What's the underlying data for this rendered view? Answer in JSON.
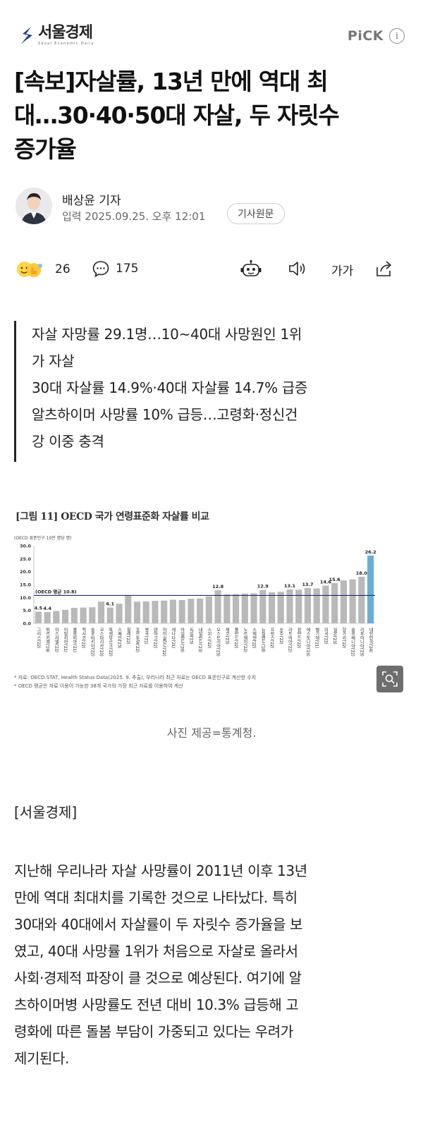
{
  "header": {
    "logo_text": "서울경제",
    "logo_subtitle": "Seoul Economic Daily",
    "pick_label": "PiCK",
    "info_icon": "info-icon",
    "brand_color": "#1f3f8f"
  },
  "article": {
    "headline_lines": [
      "[속보]자살률, 13년 만에 역대 최",
      "대…30·40·50대 자살, 두 자릿수",
      "증가율"
    ],
    "reporter": "배상윤 기자",
    "date": "입력 2025.09.25. 오후 12:01",
    "original_button": "기사원문"
  },
  "actions": {
    "reaction_count": "26",
    "comment_count": "175",
    "font_size_label": "가가",
    "icons": [
      "reaction-icon",
      "comment-icon",
      "robot-summary-icon",
      "speaker-icon",
      "font-size-icon",
      "share-icon"
    ]
  },
  "summary": {
    "lines": [
      "자살 자망률 29.1명…10~40대 사망원인 1위",
      "가 자살",
      "30대 자살률 14.9%·40대 자살률 14.7% 급증",
      "알츠하이머 사망률 10% 급등…고령화·정신건",
      "강 이중 충격"
    ]
  },
  "figure": {
    "title": "[그림 11] OECD 국가 연령표준화 자살률 비교",
    "unit": "(OECD 표준인구 10만 명당 명)",
    "notes": [
      "* 자료: OECD.STAT, Health Status Data(2025. 9. 추출), 우리나라 최근 자료는 OECD 표준인구로 계산한 수치",
      "* OECD 평균은 자료 이용이 가능한 38개 국가의 가장 최근 자료를 이용하여 계산"
    ],
    "caption": "사진 제공=통계청.",
    "zoom_icon": "zoom-icon"
  },
  "chart_data": {
    "type": "bar",
    "title": "[그림 11] OECD 국가 연령표준화 자살률 비교",
    "ylabel": "(OECD 표준인구 10만 명당 명)",
    "ylim": [
      0,
      30
    ],
    "yticks": [
      "0.0",
      "5.0",
      "10.0",
      "15.0",
      "20.0",
      "25.0",
      "30.0"
    ],
    "reference_line": {
      "label": "(OECD 평균 10.8)",
      "value": 10.8
    },
    "categories": [
      "그리스('22)",
      "튀르키예('19)",
      "이스라엘('22)",
      "이탈리아('21)",
      "콜롬비아('21)",
      "멕시코('22)",
      "슬로바키아('22)",
      "코스타리카('23)",
      "룩셈부르크('22)",
      "스페인('23)",
      "칠레('22)",
      "포르투갈('22)",
      "영국('21)",
      "덴마크('22)",
      "아이슬란드('22)",
      "캐나다('21)",
      "아일랜드('20)",
      "독일('23)",
      "네덜란드('23)",
      "스위스('22)",
      "오스트리아('23)",
      "체코('23)",
      "폴란드('22)",
      "노르웨이('22)",
      "스웨덴('22)",
      "뉴질랜드('18)",
      "프랑스('22)",
      "호주('22)",
      "라트비아('22)",
      "핀란드('22)",
      "에스토니아('23)",
      "벨기에('21)",
      "미국('22)",
      "일본('23)",
      "헝가리('22)",
      "슬로베니아('22)",
      "리투아니아('23)",
      "대한민국('24)"
    ],
    "values": [
      4.5,
      4.4,
      4.8,
      5.2,
      6.0,
      6.1,
      6.2,
      8.4,
      6.1,
      7.6,
      10.8,
      8.4,
      8.5,
      8.7,
      8.8,
      9.1,
      9.0,
      9.5,
      9.6,
      10.4,
      12.8,
      11.2,
      11.3,
      11.5,
      11.6,
      12.9,
      12.0,
      12.2,
      13.1,
      13.0,
      13.7,
      13.5,
      14.6,
      15.6,
      16.6,
      17.0,
      18.0,
      26.2
    ],
    "data_labels": [
      {
        "index": 0,
        "text": "4.5"
      },
      {
        "index": 1,
        "text": "4.4"
      },
      {
        "index": 8,
        "text": "6.1"
      },
      {
        "index": 20,
        "text": "12.8"
      },
      {
        "index": 25,
        "text": "12.9"
      },
      {
        "index": 28,
        "text": "13.1"
      },
      {
        "index": 30,
        "text": "13.7"
      },
      {
        "index": 32,
        "text": "14.6"
      },
      {
        "index": 33,
        "text": "15.6"
      },
      {
        "index": 36,
        "text": "18.0"
      },
      {
        "index": 37,
        "text": "26.2"
      }
    ],
    "bar_color": "#b9b9b9",
    "highlight_color": "#6aaed6",
    "reference_color": "#1f2c6e",
    "grid": false
  },
  "body": {
    "source": "[서울경제]",
    "paragraph_lines": [
      "지난해 우리나라 자살 사망률이 2011년 이후 13년",
      "만에 역대 최대치를 기록한 것으로 나타났다. 특히",
      "30대와 40대에서 자살률이 두 자릿수 증가율을 보",
      "였고, 40대 사망률 1위가 처음으로 자살로 올라서",
      "사회·경제적 파장이 클 것으로 예상된다. 여기에 알",
      "츠하이머병 사망률도 전년 대비 10.3% 급등해 고",
      "령화에 따른 돌봄 부담이 가중되고 있다는 우려가",
      "제기된다."
    ]
  }
}
